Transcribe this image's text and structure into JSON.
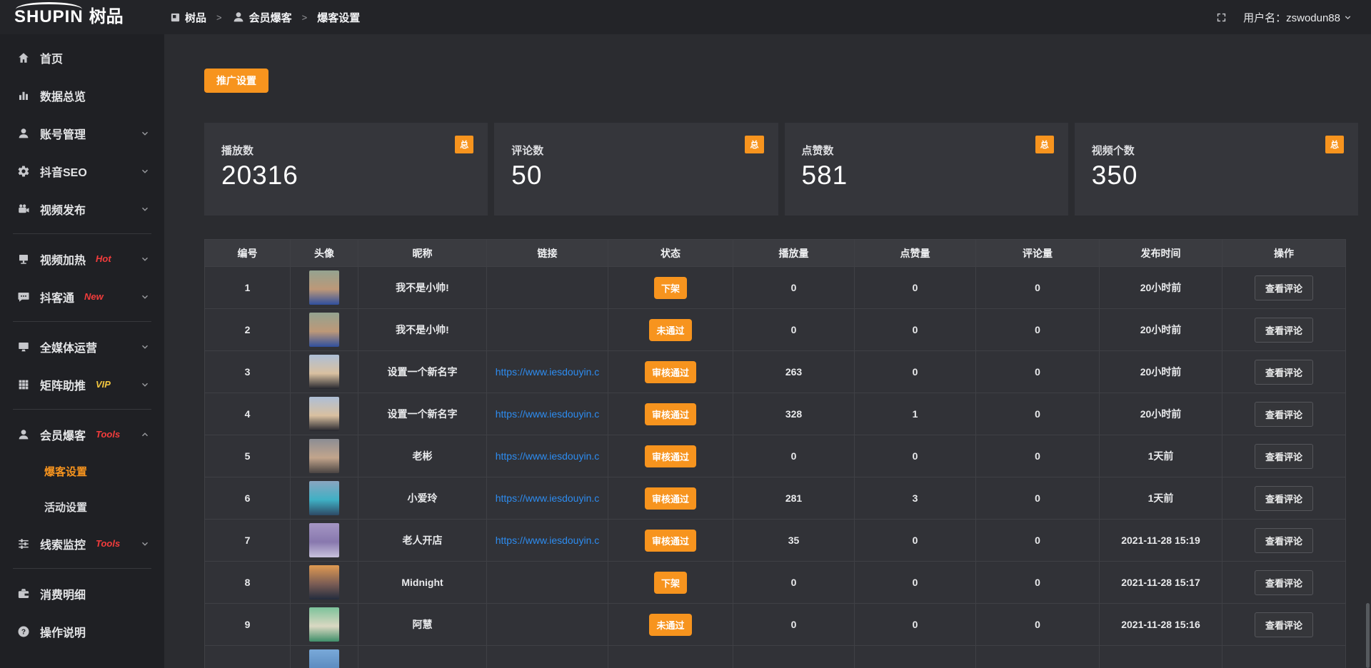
{
  "colors": {
    "accent": "#f7941e",
    "link": "#2d8cf0",
    "badge_red": "#f23c3c",
    "badge_vip": "#f0c53f"
  },
  "topbar": {
    "logo_en": "SHUPIN",
    "logo_cn": "树品",
    "breadcrumb": [
      {
        "label": "树品",
        "icon": "dashboard"
      },
      {
        "label": "会员爆客",
        "icon": "user"
      },
      {
        "label": "爆客设置",
        "icon": ""
      }
    ],
    "username": "用户名：zswodun88"
  },
  "sidebar": {
    "items": [
      {
        "key": "home",
        "label": "首页",
        "icon": "home"
      },
      {
        "key": "data-overview",
        "label": "数据总览",
        "icon": "bar-chart"
      },
      {
        "key": "account-manage",
        "label": "账号管理",
        "icon": "user",
        "expandable": true
      },
      {
        "key": "douyin-seo",
        "label": "抖音SEO",
        "icon": "gear",
        "expandable": true
      },
      {
        "key": "video-publish",
        "label": "视频发布",
        "icon": "video",
        "expandable": true,
        "divider_after": true
      },
      {
        "key": "video-heat",
        "label": "视频加热",
        "icon": "tv",
        "badge": "Hot",
        "badge_color": "#f23c3c",
        "expandable": true
      },
      {
        "key": "douketong",
        "label": "抖客通",
        "icon": "chat",
        "badge": "New",
        "badge_color": "#f23c3c",
        "expandable": true,
        "divider_after": true
      },
      {
        "key": "media-operation",
        "label": "全媒体运营",
        "icon": "monitor",
        "expandable": true
      },
      {
        "key": "matrix-boost",
        "label": "矩阵助推",
        "icon": "grid",
        "badge": "VIP",
        "badge_color": "#f0c53f",
        "expandable": true,
        "divider_after": true
      },
      {
        "key": "member-baoke",
        "label": "会员爆客",
        "icon": "user",
        "badge": "Tools",
        "badge_color": "#f23c3c",
        "expanded": true,
        "children": [
          {
            "key": "baoke-settings",
            "label": "爆客设置",
            "active": true
          },
          {
            "key": "activity-settings",
            "label": "活动设置",
            "active": false
          }
        ]
      },
      {
        "key": "clue-monitor",
        "label": "线索监控",
        "icon": "sliders",
        "badge": "Tools",
        "badge_color": "#f23c3c",
        "expandable": true,
        "divider_after": true
      },
      {
        "key": "consume-detail",
        "label": "消费明细",
        "icon": "wallet"
      },
      {
        "key": "operation-guide",
        "label": "操作说明",
        "icon": "help"
      }
    ]
  },
  "main": {
    "promo_button": "推广设置",
    "stats": [
      {
        "label": "播放数",
        "value": "20316",
        "badge": "总"
      },
      {
        "label": "评论数",
        "value": "50",
        "badge": "总"
      },
      {
        "label": "点赞数",
        "value": "581",
        "badge": "总"
      },
      {
        "label": "视频个数",
        "value": "350",
        "badge": "总"
      }
    ],
    "table": {
      "columns": [
        "编号",
        "头像",
        "昵称",
        "链接",
        "状态",
        "播放量",
        "点赞量",
        "评论量",
        "发布时间",
        "操作"
      ],
      "action_label": "查看评论",
      "rows": [
        {
          "id": "1",
          "nickname": "我不是小帅!",
          "link": "",
          "status": "下架",
          "plays": "0",
          "likes": "0",
          "comments": "0",
          "time": "20小时前",
          "avatar": [
            "#94a390",
            "#bd9878",
            "#2f4f9e"
          ]
        },
        {
          "id": "2",
          "nickname": "我不是小帅!",
          "link": "",
          "status": "未通过",
          "plays": "0",
          "likes": "0",
          "comments": "0",
          "time": "20小时前",
          "avatar": [
            "#94a390",
            "#bd9878",
            "#2f4f9e"
          ]
        },
        {
          "id": "3",
          "nickname": "设置一个新名字",
          "link": "https://www.iesdouyin.c",
          "status": "审核通过",
          "plays": "263",
          "likes": "0",
          "comments": "0",
          "time": "20小时前",
          "avatar": [
            "#aebfd6",
            "#d9c0a0",
            "#26262e"
          ]
        },
        {
          "id": "4",
          "nickname": "设置一个新名字",
          "link": "https://www.iesdouyin.c",
          "status": "审核通过",
          "plays": "328",
          "likes": "1",
          "comments": "0",
          "time": "20小时前",
          "avatar": [
            "#aebfd6",
            "#d9c0a0",
            "#26262e"
          ]
        },
        {
          "id": "5",
          "nickname": "老彬",
          "link": "https://www.iesdouyin.c",
          "status": "审核通过",
          "plays": "0",
          "likes": "0",
          "comments": "0",
          "time": "1天前",
          "avatar": [
            "#8c8d94",
            "#c2a58c",
            "#4a4442"
          ]
        },
        {
          "id": "6",
          "nickname": "小爱玲",
          "link": "https://www.iesdouyin.c",
          "status": "审核通过",
          "plays": "281",
          "likes": "3",
          "comments": "0",
          "time": "1天前",
          "avatar": [
            "#8aa5c0",
            "#3fb0c4",
            "#2e4a66"
          ]
        },
        {
          "id": "7",
          "nickname": "老人开店",
          "link": "https://www.iesdouyin.c",
          "status": "审核通过",
          "plays": "35",
          "likes": "0",
          "comments": "0",
          "time": "2021-11-28 15:19",
          "avatar": [
            "#a596c4",
            "#8878ae",
            "#c9c2dd"
          ]
        },
        {
          "id": "8",
          "nickname": "Midnight",
          "link": "",
          "status": "下架",
          "plays": "0",
          "likes": "0",
          "comments": "0",
          "time": "2021-11-28 15:17",
          "avatar": [
            "#e09a52",
            "#7a5c54",
            "#232c3e"
          ]
        },
        {
          "id": "9",
          "nickname": "阿慧",
          "link": "",
          "status": "未通过",
          "plays": "0",
          "likes": "0",
          "comments": "0",
          "time": "2021-11-28 15:16",
          "avatar": [
            "#7cc29a",
            "#dad8c2",
            "#3f8f6a"
          ]
        },
        {
          "id": "",
          "nickname": "",
          "link": "",
          "status": "",
          "plays": "",
          "likes": "",
          "comments": "",
          "time": "",
          "avatar": [
            "#79a9d9",
            "#5c8cc0",
            "#4a7ab0"
          ]
        }
      ]
    }
  }
}
